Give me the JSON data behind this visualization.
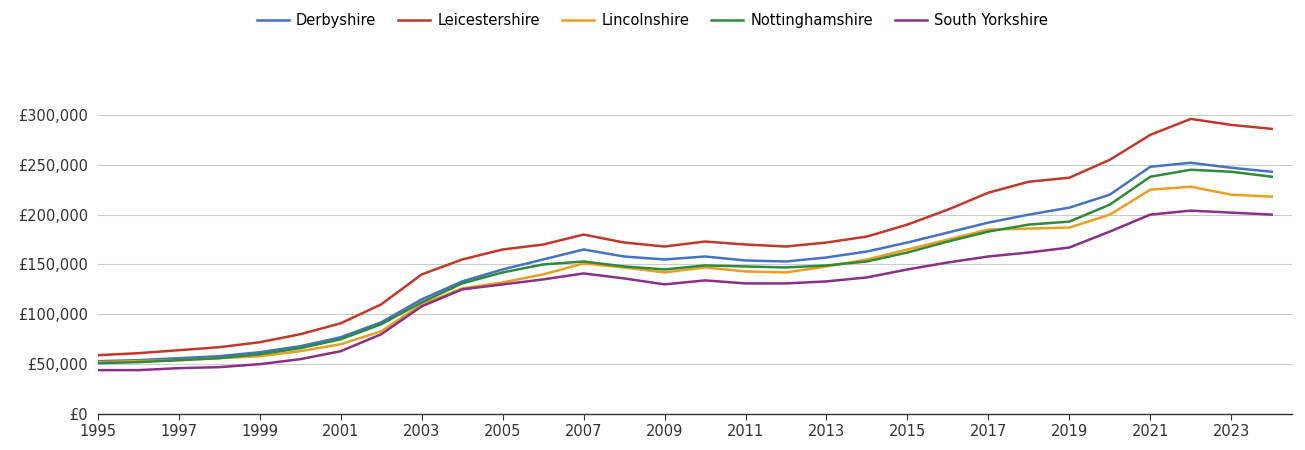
{
  "years": [
    1995,
    1996,
    1997,
    1998,
    1999,
    2000,
    2001,
    2002,
    2003,
    2004,
    2005,
    2006,
    2007,
    2008,
    2009,
    2010,
    2011,
    2012,
    2013,
    2014,
    2015,
    2016,
    2017,
    2018,
    2019,
    2020,
    2021,
    2022,
    2023,
    2024
  ],
  "Derbyshire": [
    53000,
    54000,
    56000,
    58000,
    62000,
    68000,
    77000,
    92000,
    115000,
    133000,
    145000,
    155000,
    165000,
    158000,
    155000,
    158000,
    154000,
    153000,
    157000,
    163000,
    172000,
    182000,
    192000,
    200000,
    207000,
    220000,
    248000,
    252000,
    247000,
    243000
  ],
  "Leicestershire": [
    59000,
    61000,
    64000,
    67000,
    72000,
    80000,
    91000,
    110000,
    140000,
    155000,
    165000,
    170000,
    180000,
    172000,
    168000,
    173000,
    170000,
    168000,
    172000,
    178000,
    190000,
    205000,
    222000,
    233000,
    237000,
    255000,
    280000,
    296000,
    290000,
    286000
  ],
  "Lincolnshire": [
    52000,
    53000,
    54000,
    56000,
    58000,
    63000,
    70000,
    83000,
    110000,
    126000,
    132000,
    140000,
    151000,
    147000,
    142000,
    147000,
    143000,
    142000,
    148000,
    155000,
    165000,
    175000,
    185000,
    186000,
    187000,
    200000,
    225000,
    228000,
    220000,
    218000
  ],
  "Nottinghamshire": [
    51000,
    52000,
    54000,
    56000,
    60000,
    66000,
    75000,
    90000,
    112000,
    131000,
    142000,
    150000,
    153000,
    148000,
    145000,
    149000,
    148000,
    147000,
    149000,
    153000,
    162000,
    173000,
    183000,
    190000,
    193000,
    210000,
    238000,
    245000,
    243000,
    238000
  ],
  "South Yorkshire": [
    44000,
    44000,
    46000,
    47000,
    50000,
    55000,
    63000,
    80000,
    108000,
    125000,
    130000,
    135000,
    141000,
    136000,
    130000,
    134000,
    131000,
    131000,
    133000,
    137000,
    145000,
    152000,
    158000,
    162000,
    167000,
    183000,
    200000,
    204000,
    202000,
    200000
  ],
  "colors": {
    "Derbyshire": "#4472C4",
    "Leicestershire": "#C0392B",
    "Lincolnshire": "#E8A020",
    "Nottinghamshire": "#2E8B3A",
    "South Yorkshire": "#8B2F8B"
  },
  "ylim": [
    0,
    325000
  ],
  "yticks": [
    0,
    50000,
    100000,
    150000,
    200000,
    250000,
    300000
  ],
  "ytick_labels": [
    "£0",
    "£50,000",
    "£100,000",
    "£150,000",
    "£200,000",
    "£250,000",
    "£300,000"
  ],
  "xticks": [
    1995,
    1997,
    1999,
    2001,
    2003,
    2005,
    2007,
    2009,
    2011,
    2013,
    2015,
    2017,
    2019,
    2021,
    2023
  ],
  "legend_order": [
    "Derbyshire",
    "Leicestershire",
    "Lincolnshire",
    "Nottinghamshire",
    "South Yorkshire"
  ],
  "xlim_min": 1995,
  "xlim_max": 2024.5
}
